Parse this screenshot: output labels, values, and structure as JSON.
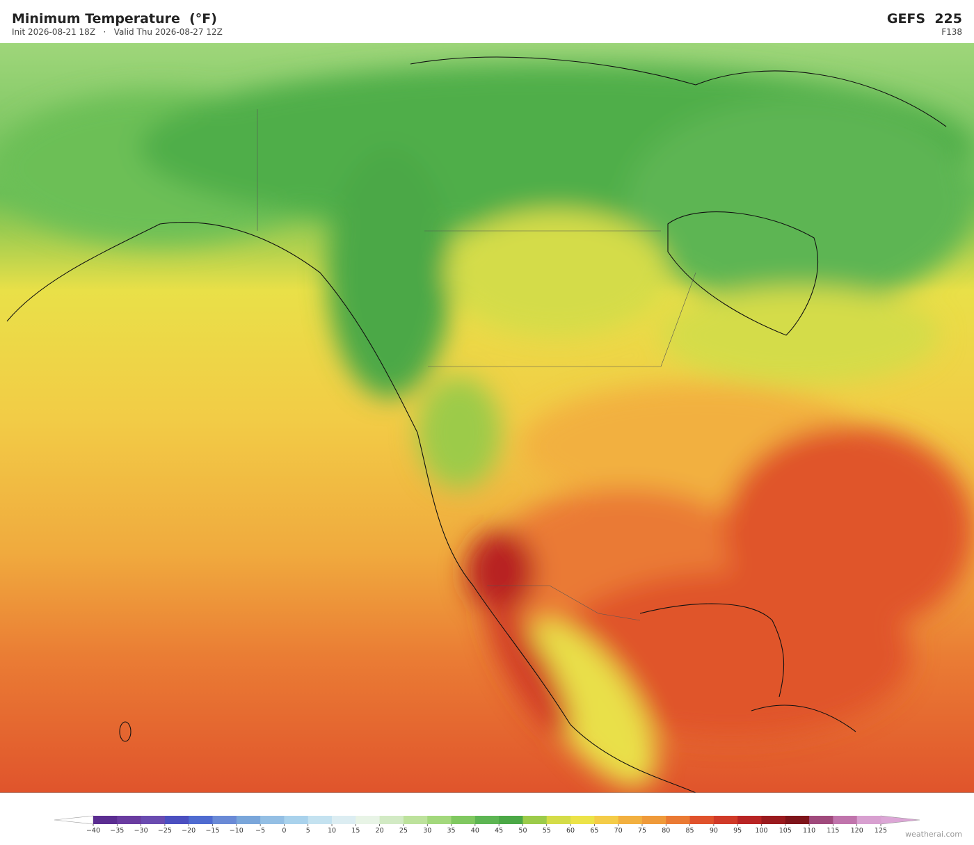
{
  "header": {
    "title": "Minimum Temperature  (°F)",
    "subtitle": "Init 2026-08-21 18Z   ·   Valid Thu 2026-08-27 12Z",
    "model": "GEFS  225",
    "forecast_hour": "F138"
  },
  "colorbar": {
    "ticks": [
      {
        "value": -40,
        "label": "−40"
      },
      {
        "value": -35,
        "label": "−35"
      },
      {
        "value": -30,
        "label": "−30"
      },
      {
        "value": -25,
        "label": "−25"
      },
      {
        "value": -20,
        "label": "−20"
      },
      {
        "value": -15,
        "label": "−15"
      },
      {
        "value": -10,
        "label": "−10"
      },
      {
        "value": -5,
        "label": "−5"
      },
      0,
      5,
      10,
      15,
      20,
      25,
      30,
      35,
      40,
      45,
      50,
      55,
      60,
      65,
      70,
      75,
      80,
      85,
      90,
      95,
      100,
      105,
      110,
      115,
      120,
      125
    ],
    "colors": [
      "#5b2d91",
      "#6a3ca0",
      "#6a4bb0",
      "#4b4fc0",
      "#4f6bd0",
      "#6a8ad6",
      "#7aa6da",
      "#94bfe4",
      "#a9d2ec",
      "#c4e2f0",
      "#dcedf2",
      "#e8f4e6",
      "#d2eac4",
      "#bde29c",
      "#a3d87c",
      "#80c860",
      "#5db553",
      "#4ba846",
      "#9ccb4a",
      "#d4dc48",
      "#ece348",
      "#f4cc48",
      "#f2b040",
      "#ef9a3a",
      "#ea7a34",
      "#e0522c",
      "#d03a28",
      "#b82424",
      "#9a1a1e",
      "#7e141a",
      "#a04a7c",
      "#c074ac",
      "#d8a0d0"
    ],
    "under_color": "#ffffff",
    "over_color": "#dca6d6"
  },
  "watermark": "weatherai.com"
}
